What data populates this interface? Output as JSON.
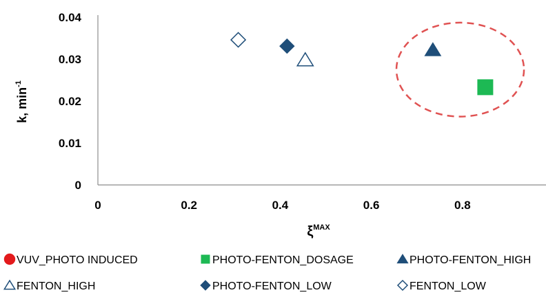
{
  "chart_data": {
    "type": "scatter",
    "title": "",
    "xlabel_main": "ξ",
    "xlabel_sup": "MAX",
    "ylabel_main": "k, min",
    "ylabel_sup": "-1",
    "xlim": [
      0,
      0.95
    ],
    "ylim": [
      0,
      0.04
    ],
    "x_ticks": [
      0,
      0.2,
      0.4,
      0.6,
      0.8
    ],
    "x_tick_labels": [
      "0",
      "0.2",
      "0.4",
      "0.6",
      "0.8"
    ],
    "y_ticks": [
      0,
      0.01,
      0.02,
      0.03,
      0.04
    ],
    "y_tick_labels": [
      "0",
      "0.01",
      "0.02",
      "0.03",
      "0.04"
    ],
    "grid": false,
    "legend_position": "bottom",
    "series": [
      {
        "name": "VUV_PHOTO INDUCED",
        "marker": "circle",
        "filled": true,
        "color": "#e31a1c",
        "points": []
      },
      {
        "name": "PHOTO-FENTON_DOSAGE",
        "marker": "square",
        "filled": true,
        "color": "#1db954",
        "points": [
          {
            "x": 0.85,
            "y": 0.0233
          }
        ]
      },
      {
        "name": "PHOTO-FENTON_HIGH",
        "marker": "triangle",
        "filled": true,
        "color": "#1f4e79",
        "points": [
          {
            "x": 0.735,
            "y": 0.0322
          }
        ]
      },
      {
        "name": "FENTON_HIGH",
        "marker": "triangle",
        "filled": false,
        "color": "#1f4e79",
        "points": [
          {
            "x": 0.455,
            "y": 0.0298
          }
        ]
      },
      {
        "name": "PHOTO-FENTON_LOW",
        "marker": "diamond",
        "filled": true,
        "color": "#1f4e79",
        "points": [
          {
            "x": 0.415,
            "y": 0.0331
          }
        ]
      },
      {
        "name": "FENTON_LOW",
        "marker": "diamond",
        "filled": false,
        "color": "#1f4e79",
        "points": [
          {
            "x": 0.308,
            "y": 0.0346
          }
        ]
      }
    ],
    "annotation": {
      "shape": "dashed-ellipse",
      "color": "#e05252",
      "center": {
        "x": 0.795,
        "y": 0.0275
      },
      "rx": 0.14,
      "ry": 0.0112
    }
  }
}
